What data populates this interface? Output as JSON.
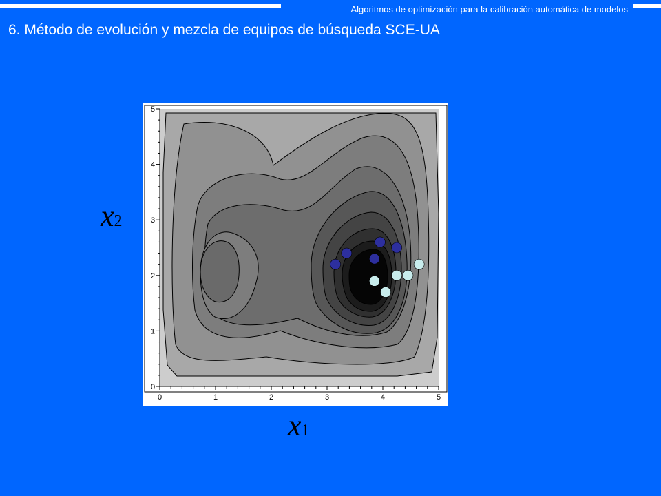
{
  "header": {
    "text": "Algoritmos de optimización para la calibración automática de modelos"
  },
  "slide": {
    "title": "6. Método de evolución y mezcla de equipos de búsqueda SCE-UA"
  },
  "plot": {
    "xlabel": {
      "main": "x",
      "sub": "1"
    },
    "ylabel": {
      "main": "x",
      "sub": "2"
    },
    "x_ticks": [
      "0",
      "1",
      "2",
      "3",
      "4",
      "5"
    ],
    "y_ticks": [
      "0",
      "1",
      "2",
      "3",
      "4",
      "5"
    ]
  },
  "colors": {
    "background": "#0066ff",
    "dark_points": "#2d2f9e",
    "light_points": "#c8ecec"
  },
  "chart_data": {
    "type": "scatter",
    "xlim": [
      0,
      5
    ],
    "ylim": [
      0,
      5
    ],
    "series": [
      {
        "color": "#2d2f9e",
        "x": [
          3.15,
          3.35,
          3.85,
          3.95,
          4.25
        ],
        "y": [
          2.2,
          2.4,
          2.3,
          2.6,
          2.5
        ]
      },
      {
        "color": "#c8ecec",
        "x": [
          3.85,
          4.05,
          4.25,
          4.45,
          4.65
        ],
        "y": [
          1.9,
          1.7,
          2.0,
          2.0,
          2.2
        ]
      }
    ]
  }
}
